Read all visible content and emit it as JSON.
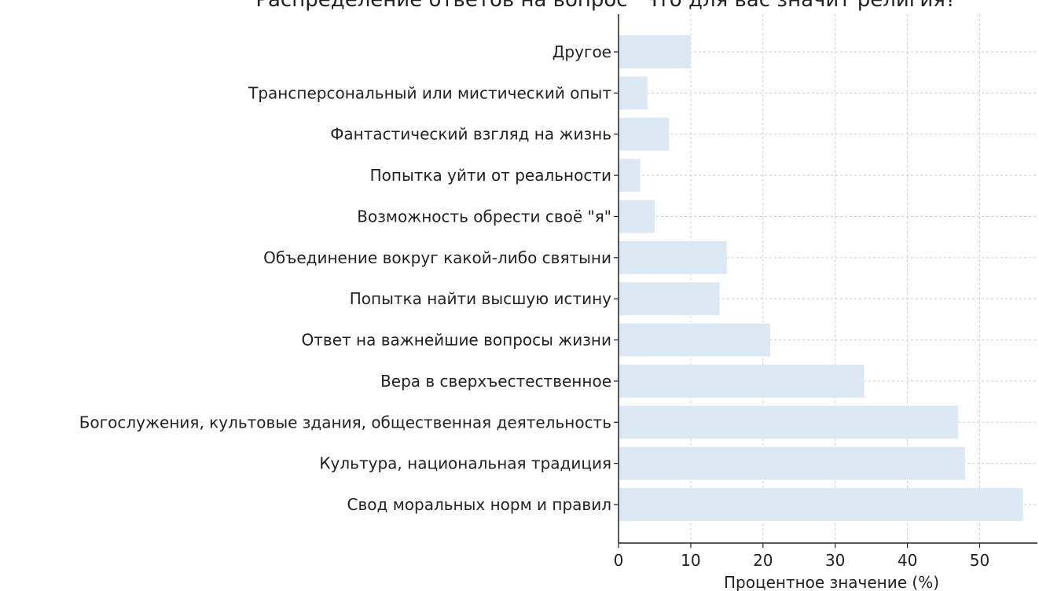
{
  "chart_data": {
    "type": "bar",
    "orientation": "horizontal",
    "title": "Распределение ответов на вопрос \"Что для вас значит религия?\"",
    "xlabel": "Процентное значение (%)",
    "ylabel": "",
    "xlim": [
      0,
      58
    ],
    "xticks": [
      0,
      10,
      20,
      30,
      40,
      50
    ],
    "grid": true,
    "bar_color": "#dde8f5",
    "categories": [
      "Свод моральных норм и правил",
      "Культура, национальная традиция",
      "Богослужения, культовые здания, общественная деятельность",
      "Вера в сверхъестественное",
      "Ответ на важнейшие вопросы жизни",
      "Попытка найти высшую истину",
      "Объединение вокруг какой-либо святыни",
      "Возможность обрести своё \"я\"",
      "Попытка уйти от реальности",
      "Фантастический взгляд на жизнь",
      "Трансперсональный или мистический опыт",
      "Другое"
    ],
    "values": [
      56,
      48,
      47,
      34,
      21,
      14,
      15,
      5,
      3,
      7,
      4,
      10
    ]
  }
}
